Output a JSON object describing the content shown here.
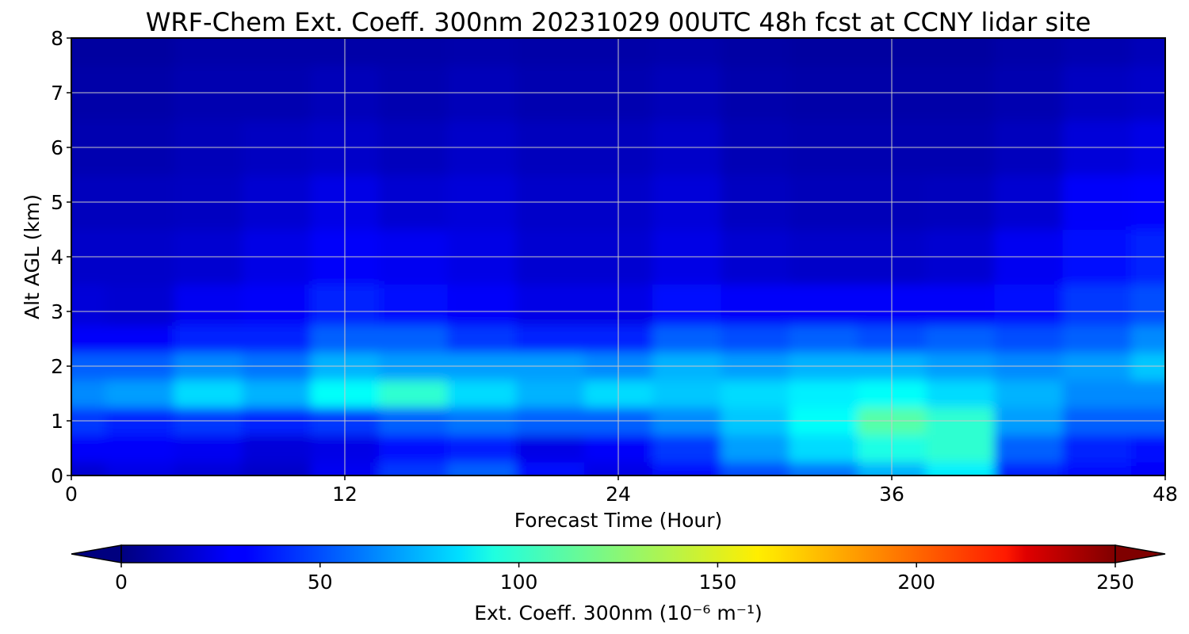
{
  "chart_data": {
    "type": "heatmap",
    "title": "WRF-Chem Ext. Coeff. 300nm  20231029 00UTC 48h fcst at CCNY lidar site",
    "xlabel": "Forecast Time (Hour)",
    "ylabel": "Alt AGL (km)",
    "xlim": [
      0,
      48
    ],
    "ylim": [
      0,
      8
    ],
    "xticks": [
      "0",
      "12",
      "24",
      "36",
      "48"
    ],
    "yticks": [
      "0",
      "1",
      "2",
      "3",
      "4",
      "5",
      "6",
      "7",
      "8"
    ],
    "grid": true,
    "colorbar": {
      "label": "Ext. Coeff. 300nm  (10⁻⁶ m⁻¹)",
      "range": [
        0,
        250
      ],
      "ticks": [
        "0",
        "50",
        "100",
        "150",
        "200",
        "250"
      ],
      "colormap": "jet",
      "extend": "both",
      "placement": "bottom"
    },
    "x": [
      0,
      3,
      6,
      9,
      12,
      15,
      18,
      21,
      24,
      27,
      30,
      33,
      36,
      39,
      42,
      45,
      48
    ],
    "y": [
      0,
      0.5,
      1,
      1.5,
      2,
      2.5,
      3,
      4,
      5,
      6,
      7,
      8
    ],
    "z": [
      [
        20,
        25,
        22,
        18,
        28,
        45,
        55,
        35,
        25,
        35,
        50,
        60,
        75,
        90,
        40,
        35,
        30
      ],
      [
        30,
        30,
        28,
        22,
        25,
        35,
        38,
        25,
        30,
        45,
        70,
        85,
        100,
        105,
        55,
        40,
        35
      ],
      [
        45,
        40,
        45,
        40,
        45,
        55,
        60,
        55,
        55,
        65,
        80,
        95,
        115,
        105,
        70,
        55,
        55
      ],
      [
        65,
        70,
        85,
        75,
        95,
        105,
        85,
        75,
        85,
        80,
        85,
        90,
        95,
        85,
        75,
        65,
        65
      ],
      [
        55,
        55,
        65,
        60,
        75,
        70,
        70,
        70,
        65,
        75,
        70,
        75,
        75,
        70,
        65,
        70,
        80
      ],
      [
        30,
        30,
        40,
        40,
        55,
        55,
        45,
        40,
        40,
        55,
        50,
        55,
        50,
        55,
        50,
        55,
        65
      ],
      [
        22,
        20,
        28,
        30,
        40,
        35,
        30,
        25,
        25,
        35,
        30,
        30,
        30,
        30,
        35,
        45,
        50
      ],
      [
        18,
        18,
        20,
        25,
        30,
        28,
        25,
        20,
        20,
        25,
        20,
        18,
        18,
        20,
        28,
        35,
        40
      ],
      [
        15,
        15,
        16,
        20,
        25,
        20,
        22,
        18,
        18,
        22,
        16,
        14,
        14,
        15,
        20,
        30,
        32
      ],
      [
        12,
        12,
        14,
        16,
        18,
        15,
        18,
        15,
        15,
        18,
        13,
        12,
        12,
        12,
        15,
        22,
        25
      ],
      [
        10,
        10,
        12,
        12,
        14,
        12,
        14,
        12,
        12,
        14,
        11,
        10,
        10,
        10,
        12,
        16,
        18
      ],
      [
        8,
        8,
        10,
        10,
        10,
        10,
        11,
        10,
        10,
        11,
        9,
        8,
        8,
        8,
        10,
        12,
        14
      ]
    ]
  }
}
